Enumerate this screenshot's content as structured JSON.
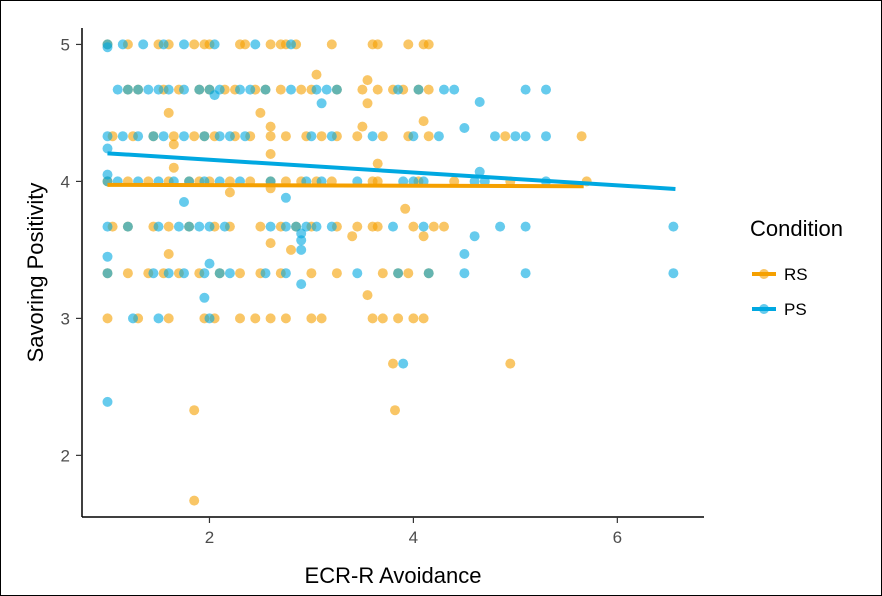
{
  "chart_data": {
    "type": "scatter",
    "title": "",
    "xlabel": "ECR-R Avoidance",
    "ylabel": "Savoring Positivity",
    "xlim": [
      0.75,
      6.85
    ],
    "ylim": [
      1.55,
      5.12
    ],
    "x_ticks": [
      2,
      4,
      6
    ],
    "y_ticks": [
      2,
      3,
      4,
      5
    ],
    "grid": false,
    "legend": {
      "title": "Condition",
      "position": "right"
    },
    "series": [
      {
        "name": "RS",
        "color": "#F5A000",
        "points": [
          [
            1,
            5
          ],
          [
            1.2,
            5
          ],
          [
            1.5,
            5
          ],
          [
            1.6,
            5
          ],
          [
            1.85,
            5
          ],
          [
            1.95,
            5
          ],
          [
            2,
            5
          ],
          [
            2.3,
            5
          ],
          [
            2.35,
            5
          ],
          [
            2.6,
            5
          ],
          [
            2.7,
            5
          ],
          [
            2.75,
            5
          ],
          [
            2.85,
            5
          ],
          [
            3.2,
            5
          ],
          [
            3.6,
            5
          ],
          [
            3.65,
            5
          ],
          [
            3.95,
            5
          ],
          [
            4.1,
            5
          ],
          [
            4.15,
            5
          ],
          [
            1.2,
            4.67
          ],
          [
            1.3,
            4.67
          ],
          [
            1.55,
            4.67
          ],
          [
            1.7,
            4.67
          ],
          [
            1.9,
            4.67
          ],
          [
            2.0,
            4.67
          ],
          [
            2.15,
            4.67
          ],
          [
            2.25,
            4.67
          ],
          [
            2.45,
            4.67
          ],
          [
            2.55,
            4.67
          ],
          [
            2.7,
            4.67
          ],
          [
            2.9,
            4.67
          ],
          [
            3.0,
            4.67
          ],
          [
            3.25,
            4.67
          ],
          [
            3.5,
            4.67
          ],
          [
            3.65,
            4.67
          ],
          [
            3.8,
            4.67
          ],
          [
            3.9,
            4.67
          ],
          [
            4.05,
            4.67
          ],
          [
            4.15,
            4.67
          ],
          [
            3.05,
            4.78
          ],
          [
            3.55,
            4.74
          ],
          [
            1.6,
            4.5
          ],
          [
            2.5,
            4.5
          ],
          [
            3.55,
            4.57
          ],
          [
            4.1,
            4.44
          ],
          [
            2.6,
            4.4
          ],
          [
            3.5,
            4.4
          ],
          [
            1.05,
            4.33
          ],
          [
            1.25,
            4.33
          ],
          [
            1.45,
            4.33
          ],
          [
            1.65,
            4.33
          ],
          [
            1.85,
            4.33
          ],
          [
            1.95,
            4.33
          ],
          [
            2.05,
            4.33
          ],
          [
            2.25,
            4.33
          ],
          [
            2.4,
            4.33
          ],
          [
            2.6,
            4.33
          ],
          [
            2.75,
            4.33
          ],
          [
            2.95,
            4.33
          ],
          [
            3.1,
            4.33
          ],
          [
            3.25,
            4.33
          ],
          [
            3.45,
            4.33
          ],
          [
            3.7,
            4.33
          ],
          [
            3.95,
            4.33
          ],
          [
            4.15,
            4.33
          ],
          [
            4.9,
            4.33
          ],
          [
            5.65,
            4.33
          ],
          [
            1.65,
            4.27
          ],
          [
            1.65,
            4.1
          ],
          [
            2.6,
            4.2
          ],
          [
            3.65,
            4.13
          ],
          [
            2.2,
            3.92
          ],
          [
            2.6,
            3.95
          ],
          [
            1.0,
            4.0
          ],
          [
            1.2,
            4.0
          ],
          [
            1.4,
            4.0
          ],
          [
            1.6,
            4.0
          ],
          [
            1.8,
            4.0
          ],
          [
            1.9,
            4.0
          ],
          [
            2.0,
            4.0
          ],
          [
            2.2,
            4.0
          ],
          [
            2.4,
            4.0
          ],
          [
            2.6,
            4.0
          ],
          [
            2.75,
            4.0
          ],
          [
            2.9,
            4.0
          ],
          [
            3.05,
            4.0
          ],
          [
            3.2,
            4.0
          ],
          [
            3.6,
            4.0
          ],
          [
            3.65,
            4.0
          ],
          [
            4.05,
            4.0
          ],
          [
            4.4,
            4.0
          ],
          [
            4.95,
            4.0
          ],
          [
            5.7,
            4.0
          ],
          [
            1.05,
            3.67
          ],
          [
            1.2,
            3.67
          ],
          [
            1.45,
            3.67
          ],
          [
            1.6,
            3.67
          ],
          [
            1.8,
            3.67
          ],
          [
            2.05,
            3.67
          ],
          [
            2.2,
            3.67
          ],
          [
            2.5,
            3.67
          ],
          [
            2.7,
            3.67
          ],
          [
            2.85,
            3.67
          ],
          [
            3.0,
            3.67
          ],
          [
            3.25,
            3.67
          ],
          [
            3.45,
            3.67
          ],
          [
            3.6,
            3.67
          ],
          [
            3.65,
            3.67
          ],
          [
            4.0,
            3.67
          ],
          [
            4.2,
            3.67
          ],
          [
            4.3,
            3.67
          ],
          [
            3.92,
            3.8
          ],
          [
            3.4,
            3.6
          ],
          [
            4.1,
            3.6
          ],
          [
            2.6,
            3.55
          ],
          [
            2.8,
            3.5
          ],
          [
            1.6,
            3.47
          ],
          [
            1.0,
            3.33
          ],
          [
            1.2,
            3.33
          ],
          [
            1.4,
            3.33
          ],
          [
            1.55,
            3.33
          ],
          [
            1.7,
            3.33
          ],
          [
            1.9,
            3.33
          ],
          [
            2.1,
            3.33
          ],
          [
            2.3,
            3.33
          ],
          [
            2.5,
            3.33
          ],
          [
            2.7,
            3.33
          ],
          [
            3.0,
            3.33
          ],
          [
            3.25,
            3.33
          ],
          [
            3.7,
            3.33
          ],
          [
            3.85,
            3.33
          ],
          [
            3.95,
            3.33
          ],
          [
            4.15,
            3.33
          ],
          [
            3.55,
            3.17
          ],
          [
            1.0,
            3.0
          ],
          [
            1.3,
            3.0
          ],
          [
            1.6,
            3.0
          ],
          [
            1.95,
            3.0
          ],
          [
            2.05,
            3.0
          ],
          [
            2.3,
            3.0
          ],
          [
            2.45,
            3.0
          ],
          [
            2.6,
            3.0
          ],
          [
            2.75,
            3.0
          ],
          [
            3.0,
            3.0
          ],
          [
            3.1,
            3.0
          ],
          [
            3.6,
            3.0
          ],
          [
            3.7,
            3.0
          ],
          [
            3.85,
            3.0
          ],
          [
            4.0,
            3.0
          ],
          [
            4.1,
            3.0
          ],
          [
            3.8,
            2.67
          ],
          [
            4.95,
            2.67
          ],
          [
            1.85,
            2.33
          ],
          [
            3.82,
            2.33
          ],
          [
            1.85,
            1.67
          ]
        ]
      },
      {
        "name": "PS",
        "color": "#00A8E1",
        "points": [
          [
            1.0,
            5
          ],
          [
            1.0,
            4.98
          ],
          [
            1.15,
            5
          ],
          [
            1.35,
            5
          ],
          [
            1.55,
            5
          ],
          [
            1.75,
            5
          ],
          [
            2.05,
            5
          ],
          [
            2.45,
            5
          ],
          [
            2.8,
            5
          ],
          [
            1.1,
            4.67
          ],
          [
            1.2,
            4.67
          ],
          [
            1.3,
            4.67
          ],
          [
            1.4,
            4.67
          ],
          [
            1.5,
            4.67
          ],
          [
            1.6,
            4.67
          ],
          [
            1.75,
            4.67
          ],
          [
            1.9,
            4.67
          ],
          [
            2.0,
            4.67
          ],
          [
            2.1,
            4.67
          ],
          [
            2.3,
            4.67
          ],
          [
            2.4,
            4.67
          ],
          [
            2.55,
            4.67
          ],
          [
            2.8,
            4.67
          ],
          [
            3.05,
            4.67
          ],
          [
            3.15,
            4.67
          ],
          [
            3.25,
            4.67
          ],
          [
            3.85,
            4.67
          ],
          [
            4.05,
            4.67
          ],
          [
            4.3,
            4.67
          ],
          [
            4.4,
            4.67
          ],
          [
            5.1,
            4.67
          ],
          [
            5.3,
            4.67
          ],
          [
            3.1,
            4.57
          ],
          [
            4.65,
            4.58
          ],
          [
            4.5,
            4.39
          ],
          [
            2.05,
            4.63
          ],
          [
            1.0,
            4.33
          ],
          [
            1.15,
            4.33
          ],
          [
            1.3,
            4.33
          ],
          [
            1.45,
            4.33
          ],
          [
            1.55,
            4.33
          ],
          [
            1.75,
            4.33
          ],
          [
            1.95,
            4.33
          ],
          [
            2.1,
            4.33
          ],
          [
            2.2,
            4.33
          ],
          [
            2.35,
            4.33
          ],
          [
            3.0,
            4.33
          ],
          [
            3.2,
            4.33
          ],
          [
            3.6,
            4.33
          ],
          [
            4.0,
            4.33
          ],
          [
            4.25,
            4.33
          ],
          [
            4.8,
            4.33
          ],
          [
            5.0,
            4.33
          ],
          [
            5.1,
            4.33
          ],
          [
            5.3,
            4.33
          ],
          [
            1.0,
            4.24
          ],
          [
            1.75,
            3.85
          ],
          [
            2.75,
            3.88
          ],
          [
            1.0,
            4.05
          ],
          [
            4.65,
            4.07
          ],
          [
            1.0,
            4.0
          ],
          [
            1.1,
            4.0
          ],
          [
            1.3,
            4.0
          ],
          [
            1.5,
            4.0
          ],
          [
            1.65,
            4.0
          ],
          [
            1.8,
            4.0
          ],
          [
            1.95,
            4.0
          ],
          [
            2.1,
            4.0
          ],
          [
            2.3,
            4.0
          ],
          [
            2.6,
            4.0
          ],
          [
            2.95,
            4.0
          ],
          [
            3.1,
            4.0
          ],
          [
            3.45,
            4.0
          ],
          [
            3.9,
            4.0
          ],
          [
            4.0,
            4.0
          ],
          [
            4.1,
            4.0
          ],
          [
            4.6,
            4.0
          ],
          [
            4.7,
            4.0
          ],
          [
            5.3,
            4.0
          ],
          [
            1.0,
            3.67
          ],
          [
            1.2,
            3.67
          ],
          [
            1.5,
            3.67
          ],
          [
            1.7,
            3.67
          ],
          [
            1.8,
            3.67
          ],
          [
            1.9,
            3.67
          ],
          [
            2.0,
            3.67
          ],
          [
            2.15,
            3.67
          ],
          [
            2.6,
            3.67
          ],
          [
            2.75,
            3.67
          ],
          [
            2.85,
            3.67
          ],
          [
            2.95,
            3.67
          ],
          [
            3.05,
            3.67
          ],
          [
            3.2,
            3.67
          ],
          [
            3.8,
            3.67
          ],
          [
            4.1,
            3.67
          ],
          [
            4.85,
            3.67
          ],
          [
            5.1,
            3.67
          ],
          [
            6.55,
            3.67
          ],
          [
            2.9,
            3.62
          ],
          [
            2.9,
            3.57
          ],
          [
            2.9,
            3.5
          ],
          [
            4.6,
            3.6
          ],
          [
            4.5,
            3.47
          ],
          [
            1.0,
            3.45
          ],
          [
            1.0,
            3.33
          ],
          [
            1.45,
            3.33
          ],
          [
            1.6,
            3.33
          ],
          [
            1.75,
            3.33
          ],
          [
            1.95,
            3.33
          ],
          [
            2.1,
            3.33
          ],
          [
            2.2,
            3.33
          ],
          [
            2.55,
            3.33
          ],
          [
            2.75,
            3.33
          ],
          [
            3.45,
            3.33
          ],
          [
            3.85,
            3.33
          ],
          [
            4.15,
            3.33
          ],
          [
            4.5,
            3.33
          ],
          [
            5.1,
            3.33
          ],
          [
            6.55,
            3.33
          ],
          [
            2.0,
            3.4
          ],
          [
            1.95,
            3.15
          ],
          [
            2.9,
            3.25
          ],
          [
            1.25,
            3.0
          ],
          [
            1.5,
            3.0
          ],
          [
            2.0,
            3.0
          ],
          [
            3.9,
            2.67
          ],
          [
            1.0,
            2.39
          ]
        ]
      }
    ],
    "trend_lines": [
      {
        "series": "RS",
        "x": [
          1.0,
          5.67
        ],
        "y": [
          3.975,
          3.965
        ]
      },
      {
        "series": "PS",
        "x": [
          1.0,
          6.57
        ],
        "y": [
          4.205,
          3.945
        ]
      }
    ]
  }
}
